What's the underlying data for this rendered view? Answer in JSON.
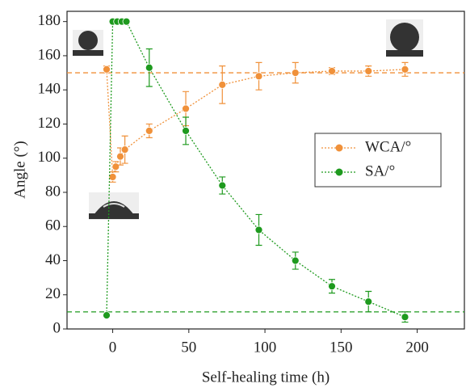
{
  "chart_data": {
    "type": "scatter",
    "x_label": "Self-healing time (h)",
    "y_label": "Angle (°)",
    "xlim": [
      -30,
      231
    ],
    "xticks": [
      0,
      50,
      100,
      150,
      200
    ],
    "ylim": [
      0,
      186
    ],
    "yticks": [
      0,
      20,
      40,
      60,
      80,
      100,
      120,
      140,
      160,
      180
    ],
    "legend": "right",
    "hlines": [
      {
        "value": 150,
        "color": "#f0913a"
      },
      {
        "value": 10,
        "color": "#1e9a1e"
      }
    ],
    "series": [
      {
        "name": "WCA/°",
        "color": "#f0913a",
        "x": [
          -4,
          0,
          2,
          5,
          8,
          24,
          48,
          72,
          96,
          120,
          144,
          168,
          192
        ],
        "values": [
          152,
          89,
          95,
          101,
          105,
          116,
          129,
          143,
          148,
          150,
          151,
          151,
          152
        ],
        "errors": [
          2,
          3,
          3,
          5,
          8,
          4,
          10,
          11,
          8,
          6,
          2,
          3,
          4
        ]
      },
      {
        "name": "SA/°",
        "color": "#1e9a1e",
        "x": [
          -4,
          0,
          3,
          6,
          9,
          24,
          48,
          72,
          96,
          120,
          144,
          168,
          192
        ],
        "values": [
          8,
          180,
          180,
          180,
          180,
          153,
          116,
          84,
          58,
          40,
          25,
          16,
          7
        ],
        "errors": [
          0,
          0,
          0,
          0,
          0,
          11,
          8,
          5,
          9,
          5,
          4,
          6,
          3
        ]
      }
    ]
  }
}
